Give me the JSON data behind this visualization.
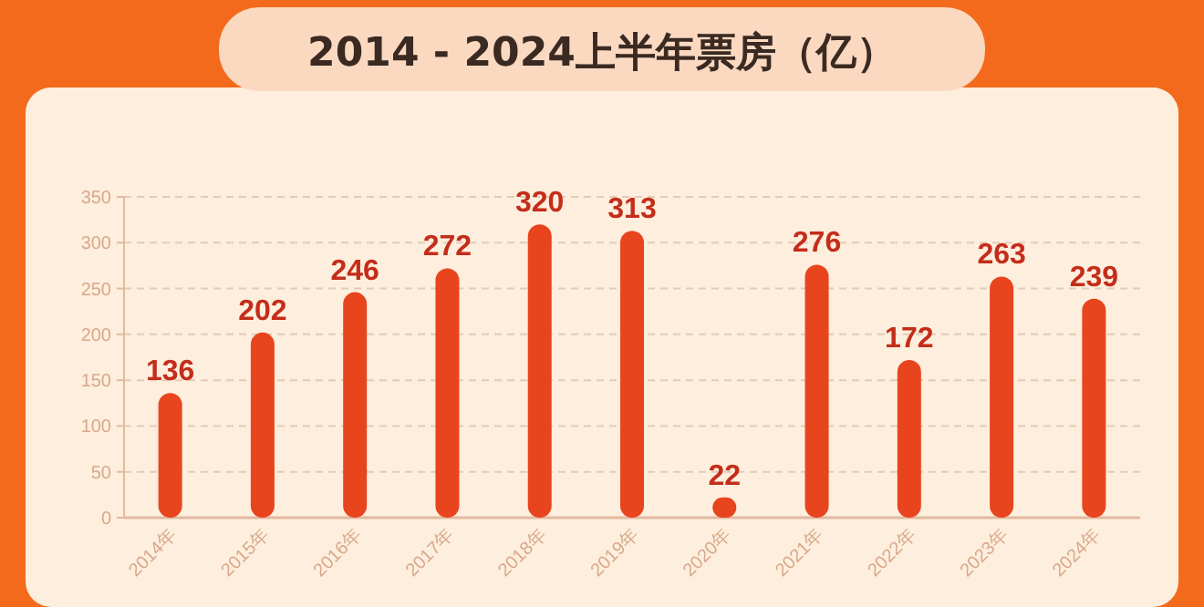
{
  "chart_data": {
    "type": "bar",
    "title": "2014 - 2024上半年票房（亿）",
    "categories": [
      "2014年",
      "2015年",
      "2016年",
      "2017年",
      "2018年",
      "2019年",
      "2020年",
      "2021年",
      "2022年",
      "2023年",
      "2024年"
    ],
    "values": [
      136,
      202,
      246,
      272,
      320,
      313,
      22,
      276,
      172,
      263,
      239
    ],
    "color": "#e8441e",
    "ylim": [
      0,
      350
    ],
    "yticks": [
      0,
      50,
      100,
      150,
      200,
      250,
      300,
      350
    ],
    "grid": "y",
    "data_labels": true
  }
}
